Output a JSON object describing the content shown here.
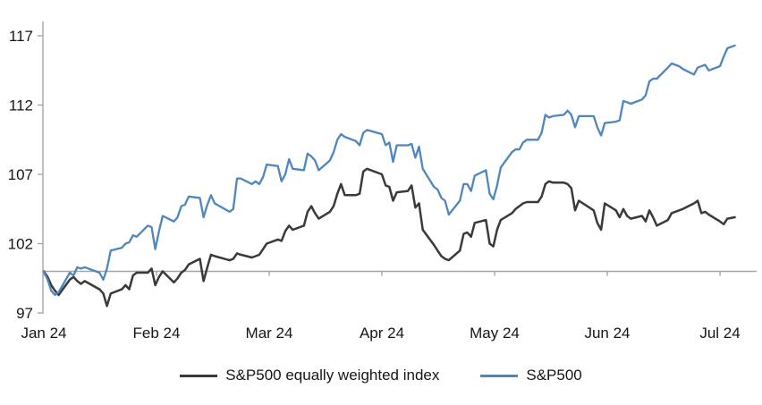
{
  "chart_data": {
    "type": "line",
    "title": "",
    "xlabel": "",
    "ylabel": "",
    "x_unit": "day offset in 2024 (Jan 1 = 0)",
    "x_tick_labels": [
      "Jan 24",
      "Feb 24",
      "Mar 24",
      "Apr 24",
      "May 24",
      "Jun 24",
      "Jul 24"
    ],
    "x_tick_days": [
      0,
      31,
      60,
      91,
      121,
      152,
      182
    ],
    "y_ticks": [
      97,
      102,
      107,
      112,
      117
    ],
    "ylim": [
      96.9,
      118.3
    ],
    "baseline_value": 100,
    "grid": "none",
    "legend_position": "bottom-center",
    "series": [
      {
        "name": "S&P500 equally weighted index",
        "color": "#3a3a3a",
        "points": [
          [
            0,
            100.0
          ],
          [
            1,
            99.6
          ],
          [
            2,
            99.0
          ],
          [
            3,
            98.6
          ],
          [
            4,
            98.3
          ],
          [
            7,
            99.4
          ],
          [
            8,
            99.6
          ],
          [
            9,
            99.3
          ],
          [
            10,
            99.1
          ],
          [
            11,
            99.3
          ],
          [
            15,
            98.7
          ],
          [
            16,
            98.4
          ],
          [
            17,
            97.5
          ],
          [
            18,
            98.4
          ],
          [
            21,
            98.7
          ],
          [
            22,
            99.0
          ],
          [
            23,
            98.7
          ],
          [
            24,
            99.7
          ],
          [
            25,
            99.9
          ],
          [
            28,
            99.9
          ],
          [
            29,
            100.2
          ],
          [
            30,
            99.0
          ],
          [
            31,
            99.6
          ],
          [
            32,
            100.0
          ],
          [
            35,
            99.2
          ],
          [
            36,
            99.5
          ],
          [
            37,
            99.9
          ],
          [
            38,
            100.1
          ],
          [
            39,
            100.5
          ],
          [
            42,
            100.9
          ],
          [
            43,
            99.3
          ],
          [
            44,
            100.3
          ],
          [
            45,
            101.2
          ],
          [
            46,
            101.1
          ],
          [
            50,
            100.8
          ],
          [
            51,
            100.9
          ],
          [
            52,
            101.3
          ],
          [
            53,
            101.2
          ],
          [
            56,
            101.0
          ],
          [
            57,
            101.1
          ],
          [
            58,
            101.2
          ],
          [
            59,
            101.6
          ],
          [
            60,
            102.0
          ],
          [
            63,
            102.3
          ],
          [
            64,
            102.2
          ],
          [
            65,
            102.9
          ],
          [
            66,
            103.3
          ],
          [
            67,
            103.0
          ],
          [
            70,
            103.3
          ],
          [
            71,
            104.3
          ],
          [
            72,
            104.7
          ],
          [
            73,
            104.2
          ],
          [
            74,
            103.8
          ],
          [
            77,
            104.3
          ],
          [
            78,
            104.7
          ],
          [
            79,
            105.6
          ],
          [
            80,
            106.3
          ],
          [
            81,
            105.5
          ],
          [
            84,
            105.5
          ],
          [
            85,
            105.6
          ],
          [
            86,
            107.2
          ],
          [
            87,
            107.4
          ],
          [
            91,
            107.0
          ],
          [
            92,
            106.2
          ],
          [
            93,
            106.1
          ],
          [
            94,
            105.1
          ],
          [
            95,
            105.7
          ],
          [
            98,
            105.8
          ],
          [
            99,
            106.2
          ],
          [
            100,
            104.6
          ],
          [
            101,
            104.9
          ],
          [
            102,
            103.0
          ],
          [
            105,
            101.9
          ],
          [
            106,
            101.5
          ],
          [
            107,
            101.1
          ],
          [
            108,
            100.9
          ],
          [
            109,
            100.8
          ],
          [
            112,
            101.5
          ],
          [
            113,
            102.7
          ],
          [
            114,
            102.8
          ],
          [
            115,
            102.5
          ],
          [
            116,
            103.5
          ],
          [
            119,
            103.7
          ],
          [
            120,
            102.0
          ],
          [
            121,
            101.8
          ],
          [
            122,
            103.0
          ],
          [
            123,
            103.7
          ],
          [
            126,
            104.2
          ],
          [
            127,
            104.5
          ],
          [
            128,
            104.7
          ],
          [
            129,
            104.9
          ],
          [
            130,
            105.0
          ],
          [
            133,
            105.0
          ],
          [
            134,
            105.4
          ],
          [
            135,
            106.3
          ],
          [
            136,
            106.5
          ],
          [
            137,
            106.4
          ],
          [
            140,
            106.4
          ],
          [
            141,
            106.3
          ],
          [
            142,
            106.0
          ],
          [
            143,
            104.4
          ],
          [
            144,
            105.1
          ],
          [
            148,
            104.4
          ],
          [
            149,
            103.5
          ],
          [
            150,
            103.0
          ],
          [
            151,
            104.9
          ],
          [
            154,
            104.4
          ],
          [
            155,
            103.9
          ],
          [
            156,
            104.5
          ],
          [
            157,
            104.0
          ],
          [
            158,
            103.8
          ],
          [
            161,
            104.0
          ],
          [
            162,
            103.6
          ],
          [
            163,
            104.4
          ],
          [
            164,
            103.9
          ],
          [
            165,
            103.3
          ],
          [
            168,
            103.7
          ],
          [
            169,
            104.2
          ],
          [
            171,
            104.4
          ],
          [
            172,
            104.5
          ],
          [
            175,
            104.9
          ],
          [
            176,
            105.1
          ],
          [
            177,
            104.2
          ],
          [
            178,
            104.3
          ],
          [
            179,
            104.1
          ],
          [
            182,
            103.6
          ],
          [
            183,
            103.4
          ],
          [
            184,
            103.8
          ],
          [
            186,
            103.9
          ]
        ]
      },
      {
        "name": "S&P500",
        "color": "#4e86bd",
        "points": [
          [
            0,
            100.0
          ],
          [
            1,
            99.4
          ],
          [
            2,
            98.6
          ],
          [
            3,
            98.3
          ],
          [
            4,
            98.5
          ],
          [
            7,
            99.9
          ],
          [
            8,
            99.7
          ],
          [
            9,
            100.3
          ],
          [
            10,
            100.2
          ],
          [
            11,
            100.3
          ],
          [
            15,
            99.9
          ],
          [
            16,
            99.4
          ],
          [
            17,
            100.2
          ],
          [
            18,
            101.5
          ],
          [
            21,
            101.7
          ],
          [
            22,
            102.0
          ],
          [
            23,
            102.1
          ],
          [
            24,
            102.6
          ],
          [
            25,
            102.5
          ],
          [
            28,
            103.3
          ],
          [
            29,
            103.2
          ],
          [
            30,
            101.6
          ],
          [
            31,
            102.9
          ],
          [
            32,
            104.0
          ],
          [
            35,
            103.6
          ],
          [
            36,
            103.9
          ],
          [
            37,
            104.7
          ],
          [
            38,
            104.8
          ],
          [
            39,
            105.4
          ],
          [
            42,
            105.3
          ],
          [
            43,
            103.9
          ],
          [
            44,
            104.8
          ],
          [
            45,
            105.5
          ],
          [
            46,
            104.9
          ],
          [
            50,
            104.3
          ],
          [
            51,
            104.5
          ],
          [
            52,
            106.7
          ],
          [
            53,
            106.7
          ],
          [
            56,
            106.3
          ],
          [
            57,
            106.5
          ],
          [
            58,
            106.3
          ],
          [
            59,
            106.8
          ],
          [
            60,
            107.7
          ],
          [
            63,
            107.6
          ],
          [
            64,
            106.5
          ],
          [
            65,
            107.0
          ],
          [
            66,
            108.1
          ],
          [
            67,
            107.4
          ],
          [
            70,
            107.3
          ],
          [
            71,
            108.5
          ],
          [
            72,
            108.3
          ],
          [
            73,
            108.0
          ],
          [
            74,
            107.3
          ],
          [
            77,
            108.0
          ],
          [
            78,
            108.6
          ],
          [
            79,
            109.5
          ],
          [
            80,
            109.9
          ],
          [
            81,
            109.7
          ],
          [
            84,
            109.4
          ],
          [
            85,
            109.1
          ],
          [
            86,
            110.0
          ],
          [
            87,
            110.2
          ],
          [
            91,
            109.9
          ],
          [
            92,
            109.1
          ],
          [
            93,
            109.3
          ],
          [
            94,
            107.9
          ],
          [
            95,
            109.1
          ],
          [
            98,
            109.1
          ],
          [
            99,
            109.2
          ],
          [
            100,
            108.2
          ],
          [
            101,
            109.0
          ],
          [
            102,
            107.4
          ],
          [
            105,
            106.1
          ],
          [
            106,
            105.9
          ],
          [
            107,
            105.3
          ],
          [
            108,
            105.1
          ],
          [
            109,
            104.1
          ],
          [
            112,
            105.1
          ],
          [
            113,
            106.3
          ],
          [
            114,
            106.3
          ],
          [
            115,
            105.8
          ],
          [
            116,
            106.9
          ],
          [
            119,
            107.3
          ],
          [
            120,
            105.6
          ],
          [
            121,
            105.2
          ],
          [
            122,
            106.2
          ],
          [
            123,
            107.5
          ],
          [
            126,
            108.6
          ],
          [
            127,
            108.8
          ],
          [
            128,
            108.8
          ],
          [
            129,
            109.3
          ],
          [
            130,
            109.5
          ],
          [
            133,
            109.5
          ],
          [
            134,
            110.0
          ],
          [
            135,
            111.3
          ],
          [
            136,
            111.1
          ],
          [
            137,
            111.2
          ],
          [
            140,
            111.3
          ],
          [
            141,
            111.6
          ],
          [
            142,
            111.3
          ],
          [
            143,
            110.4
          ],
          [
            144,
            111.2
          ],
          [
            148,
            111.2
          ],
          [
            149,
            110.4
          ],
          [
            150,
            109.8
          ],
          [
            151,
            110.7
          ],
          [
            154,
            110.8
          ],
          [
            155,
            110.9
          ],
          [
            156,
            112.3
          ],
          [
            157,
            112.2
          ],
          [
            158,
            112.1
          ],
          [
            161,
            112.4
          ],
          [
            162,
            112.7
          ],
          [
            163,
            113.7
          ],
          [
            164,
            113.9
          ],
          [
            165,
            113.9
          ],
          [
            168,
            114.7
          ],
          [
            169,
            115.0
          ],
          [
            171,
            114.8
          ],
          [
            172,
            114.6
          ],
          [
            175,
            114.2
          ],
          [
            176,
            114.7
          ],
          [
            177,
            114.8
          ],
          [
            178,
            114.9
          ],
          [
            179,
            114.5
          ],
          [
            182,
            114.8
          ],
          [
            183,
            115.5
          ],
          [
            184,
            116.1
          ],
          [
            186,
            116.3
          ]
        ]
      }
    ]
  },
  "legend": {
    "items": [
      {
        "label": "S&P500 equally weighted index",
        "color": "#3a3a3a"
      },
      {
        "label": "S&P500",
        "color": "#4e86bd"
      }
    ]
  },
  "colors": {
    "background": "#ffffff",
    "axis": "#a6a6a6",
    "baseline": "#a6a6a6",
    "text": "#161616"
  }
}
